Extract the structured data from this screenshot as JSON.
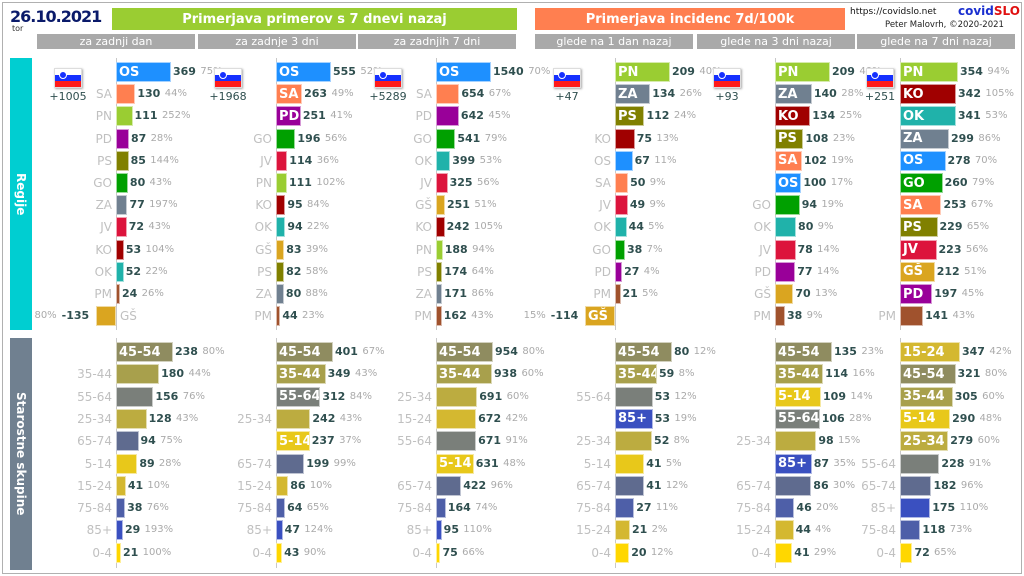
{
  "header": {
    "date": "26.10.2021",
    "day": "tor",
    "group1": "Primerjava primerov s 7 dnevi nazaj",
    "group2": "Primerjava incidenc 7d/100k",
    "group1_color": "#9acd32",
    "group2_color": "#ff7f50",
    "url": "https://covidslo.net",
    "brand1": "covid",
    "brand2": "SLO",
    "author": "Peter Malovrh, ©2020-2021"
  },
  "bands": {
    "regions": "Regije",
    "ages": "Starostne skupine",
    "regions_color": "#00ced1",
    "ages_color": "#708090"
  },
  "colors": {
    "OS": "#1e90ff",
    "SA": "#ff7f50",
    "PN": "#9acd32",
    "PD": "#990099",
    "PS": "#808000",
    "GO": "#00a000",
    "ZA": "#708090",
    "JV": "#dc143c",
    "KO": "#a00000",
    "OK": "#20b2aa",
    "PM": "#a0522d",
    "GŠ": "#daa520",
    "45-54": "#8f8c60",
    "35-44": "#a8a04c",
    "55-64": "#7a7f7a",
    "25-34": "#bcac40",
    "65-74": "#5f6b8f",
    "5-14": "#e8c81a",
    "15-24": "#d4b830",
    "75-84": "#4e5fa8",
    "85+": "#3a50c0",
    "0-4": "#ffd700"
  },
  "columns": [
    {
      "title": "za zadnji dan",
      "delta": "+1005",
      "overlay": false,
      "regions": [
        [
          "OS",
          369,
          "75%",
          1
        ],
        [
          "SA",
          130,
          "44%",
          0
        ],
        [
          "PN",
          111,
          "252%",
          0
        ],
        [
          "PD",
          87,
          "28%",
          0
        ],
        [
          "PS",
          85,
          "144%",
          0
        ],
        [
          "GO",
          80,
          "43%",
          0
        ],
        [
          "ZA",
          77,
          "197%",
          0
        ],
        [
          "JV",
          72,
          "43%",
          0
        ],
        [
          "KO",
          53,
          "104%",
          0
        ],
        [
          "OK",
          52,
          "22%",
          0
        ],
        [
          "PM",
          24,
          "26%",
          0
        ],
        [
          "GŠ",
          -135,
          "80%",
          0
        ]
      ],
      "ages": [
        [
          "45-54",
          238,
          "80%",
          1
        ],
        [
          "35-44",
          180,
          "44%",
          0
        ],
        [
          "55-64",
          156,
          "76%",
          0
        ],
        [
          "25-34",
          128,
          "43%",
          0
        ],
        [
          "65-74",
          94,
          "75%",
          0
        ],
        [
          "5-14",
          89,
          "28%",
          0
        ],
        [
          "15-24",
          41,
          "10%",
          0
        ],
        [
          "75-84",
          38,
          "76%",
          0
        ],
        [
          "85+",
          29,
          "193%",
          0
        ],
        [
          "0-4",
          21,
          "100%",
          0
        ]
      ]
    },
    {
      "title": "za zadnje 3 dni",
      "delta": "+1968",
      "overlay": false,
      "regions": [
        [
          "OS",
          555,
          "52%",
          1
        ],
        [
          "SA",
          263,
          "49%",
          1
        ],
        [
          "PD",
          251,
          "41%",
          1
        ],
        [
          "GO",
          196,
          "56%",
          0
        ],
        [
          "JV",
          114,
          "36%",
          0
        ],
        [
          "PN",
          111,
          "102%",
          0
        ],
        [
          "KO",
          95,
          "84%",
          0
        ],
        [
          "OK",
          94,
          "22%",
          0
        ],
        [
          "GŠ",
          83,
          "39%",
          0
        ],
        [
          "PS",
          82,
          "58%",
          0
        ],
        [
          "ZA",
          80,
          "88%",
          0
        ],
        [
          "PM",
          44,
          "23%",
          0
        ]
      ],
      "ages": [
        [
          "45-54",
          401,
          "67%",
          1
        ],
        [
          "35-44",
          349,
          "43%",
          1
        ],
        [
          "55-64",
          312,
          "84%",
          1
        ],
        [
          "25-34",
          242,
          "43%",
          0
        ],
        [
          "5-14",
          237,
          "37%",
          1
        ],
        [
          "65-74",
          199,
          "99%",
          0
        ],
        [
          "15-24",
          86,
          "10%",
          0
        ],
        [
          "75-84",
          64,
          "65%",
          0
        ],
        [
          "85+",
          47,
          "124%",
          0
        ],
        [
          "0-4",
          43,
          "90%",
          0
        ]
      ]
    },
    {
      "title": "za zadnjih 7 dni",
      "delta": "+5289",
      "overlay": false,
      "regions": [
        [
          "OS",
          1540,
          "70%",
          1
        ],
        [
          "SA",
          654,
          "67%",
          0
        ],
        [
          "PD",
          642,
          "45%",
          0
        ],
        [
          "GO",
          541,
          "79%",
          0
        ],
        [
          "OK",
          399,
          "53%",
          0
        ],
        [
          "JV",
          325,
          "56%",
          0
        ],
        [
          "GŠ",
          251,
          "51%",
          0
        ],
        [
          "KO",
          242,
          "105%",
          0
        ],
        [
          "PN",
          188,
          "94%",
          0
        ],
        [
          "PS",
          174,
          "64%",
          0
        ],
        [
          "ZA",
          171,
          "86%",
          0
        ],
        [
          "PM",
          162,
          "43%",
          0
        ]
      ],
      "ages": [
        [
          "45-54",
          954,
          "80%",
          1
        ],
        [
          "35-44",
          938,
          "60%",
          1
        ],
        [
          "25-34",
          691,
          "60%",
          0
        ],
        [
          "15-24",
          672,
          "42%",
          0
        ],
        [
          "55-64",
          671,
          "91%",
          0
        ],
        [
          "5-14",
          631,
          "48%",
          1
        ],
        [
          "65-74",
          422,
          "96%",
          0
        ],
        [
          "75-84",
          164,
          "74%",
          0
        ],
        [
          "85+",
          95,
          "110%",
          0
        ],
        [
          "0-4",
          75,
          "66%",
          0
        ]
      ]
    },
    {
      "title": "glede na 1 dan nazaj",
      "delta": "+47",
      "overlay": false,
      "regions": [
        [
          "PN",
          209,
          "40%",
          1
        ],
        [
          "ZA",
          134,
          "26%",
          1
        ],
        [
          "PS",
          112,
          "24%",
          1
        ],
        [
          "KO",
          75,
          "13%",
          0
        ],
        [
          "OS",
          67,
          "11%",
          0
        ],
        [
          "SA",
          50,
          "9%",
          0
        ],
        [
          "JV",
          49,
          "9%",
          0
        ],
        [
          "OK",
          44,
          "5%",
          0
        ],
        [
          "GO",
          38,
          "7%",
          0
        ],
        [
          "PD",
          27,
          "4%",
          0
        ],
        [
          "PM",
          21,
          "5%",
          0
        ],
        [
          "GŠ",
          -114,
          "15%",
          1
        ]
      ],
      "ages": [
        [
          "45-54",
          80,
          "12%",
          1
        ],
        [
          "35-44",
          59,
          "8%",
          1
        ],
        [
          "55-64",
          53,
          "12%",
          0
        ],
        [
          "85+",
          53,
          "19%",
          1
        ],
        [
          "25-34",
          52,
          "8%",
          0
        ],
        [
          "5-14",
          41,
          "5%",
          0
        ],
        [
          "65-74",
          41,
          "12%",
          0
        ],
        [
          "75-84",
          27,
          "11%",
          0
        ],
        [
          "15-24",
          21,
          "2%",
          0
        ],
        [
          "0-4",
          20,
          "12%",
          0
        ]
      ]
    },
    {
      "title": "glede na 3 dni nazaj",
      "delta": "+93",
      "overlay": false,
      "regions": [
        [
          "PN",
          209,
          "40%",
          1
        ],
        [
          "ZA",
          140,
          "28%",
          1
        ],
        [
          "KO",
          134,
          "25%",
          1
        ],
        [
          "PS",
          108,
          "23%",
          1
        ],
        [
          "SA",
          102,
          "19%",
          1
        ],
        [
          "OS",
          100,
          "17%",
          1
        ],
        [
          "GO",
          94,
          "19%",
          0
        ],
        [
          "OK",
          80,
          "9%",
          0
        ],
        [
          "JV",
          78,
          "14%",
          0
        ],
        [
          "PD",
          77,
          "14%",
          0
        ],
        [
          "GŠ",
          70,
          "13%",
          0
        ],
        [
          "PM",
          38,
          "9%",
          0
        ]
      ],
      "ages": [
        [
          "45-54",
          135,
          "23%",
          1
        ],
        [
          "35-44",
          114,
          "16%",
          1
        ],
        [
          "5-14",
          109,
          "14%",
          1
        ],
        [
          "55-64",
          106,
          "28%",
          1
        ],
        [
          "25-34",
          98,
          "15%",
          0
        ],
        [
          "85+",
          87,
          "35%",
          1
        ],
        [
          "65-74",
          86,
          "30%",
          0
        ],
        [
          "75-84",
          46,
          "20%",
          0
        ],
        [
          "15-24",
          44,
          "4%",
          0
        ],
        [
          "0-4",
          41,
          "29%",
          0
        ]
      ]
    },
    {
      "title": "glede na 7 dni nazaj",
      "delta": "+251",
      "overlay": true,
      "regions": [
        [
          "PN",
          354,
          "94%",
          1
        ],
        [
          "KO",
          342,
          "105%",
          1
        ],
        [
          "OK",
          341,
          "53%",
          1
        ],
        [
          "ZA",
          299,
          "86%",
          1
        ],
        [
          "OS",
          278,
          "70%",
          1
        ],
        [
          "GO",
          260,
          "79%",
          1
        ],
        [
          "SA",
          253,
          "67%",
          1
        ],
        [
          "PS",
          229,
          "65%",
          1
        ],
        [
          "JV",
          223,
          "56%",
          1
        ],
        [
          "GŠ",
          212,
          "51%",
          1
        ],
        [
          "PD",
          197,
          "45%",
          1
        ],
        [
          "PM",
          141,
          "43%",
          0
        ]
      ],
      "ages": [
        [
          "15-24",
          347,
          "42%",
          1
        ],
        [
          "45-54",
          321,
          "80%",
          1
        ],
        [
          "35-44",
          305,
          "60%",
          1
        ],
        [
          "5-14",
          290,
          "48%",
          1
        ],
        [
          "25-34",
          279,
          "60%",
          1
        ],
        [
          "55-64",
          228,
          "91%",
          0
        ],
        [
          "65-74",
          182,
          "96%",
          0
        ],
        [
          "85+",
          175,
          "110%",
          0
        ],
        [
          "75-84",
          118,
          "73%",
          0
        ],
        [
          "0-4",
          72,
          "65%",
          0
        ]
      ]
    }
  ]
}
